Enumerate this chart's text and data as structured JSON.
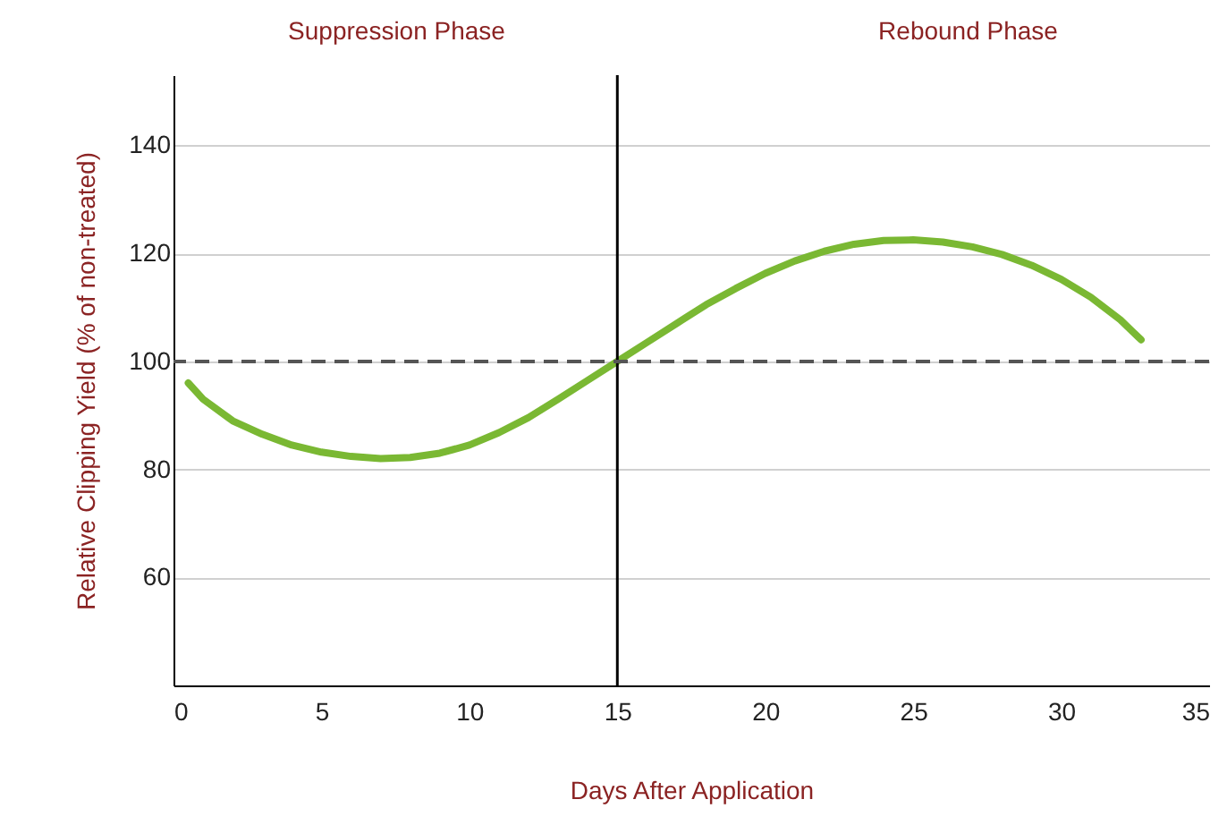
{
  "chart_data": {
    "type": "line",
    "xlabel": "Days After Application",
    "ylabel": "Relative Clipping Yield (% of non-treated)",
    "annotations": [
      "Suppression Phase",
      "Rebound Phase"
    ],
    "x": [
      0.5,
      1,
      2,
      3,
      4,
      5,
      6,
      7,
      8,
      9,
      10,
      11,
      12,
      13,
      14,
      15,
      16,
      17,
      18,
      19,
      20,
      21,
      22,
      23,
      24,
      25,
      26,
      27,
      28,
      29,
      30,
      31,
      32,
      32.7
    ],
    "series": [
      {
        "color": "#7ab833",
        "values": [
          96,
          93,
          89,
          86.5,
          84.5,
          83.2,
          82.4,
          82,
          82.2,
          83,
          84.5,
          86.8,
          89.6,
          93,
          96.5,
          100,
          103.5,
          107,
          110.5,
          113.5,
          116.3,
          118.6,
          120.4,
          121.7,
          122.4,
          122.5,
          122.1,
          121.2,
          119.8,
          117.8,
          115.2,
          111.9,
          107.7,
          104
        ]
      }
    ],
    "xlim": [
      0,
      35
    ],
    "xticks": [
      0,
      5,
      10,
      15,
      20,
      25,
      30,
      35
    ],
    "ylim": [
      40,
      153
    ],
    "yticks": [
      60,
      80,
      100,
      120,
      140
    ],
    "grid": "y",
    "marker": "none",
    "line_style": "solid",
    "ref_lines": [
      {
        "axis": "x",
        "value": 15,
        "color": "#000000",
        "line_style": "solid"
      },
      {
        "axis": "y",
        "value": 100,
        "color": "#555555",
        "line_style": "dashed"
      }
    ]
  }
}
